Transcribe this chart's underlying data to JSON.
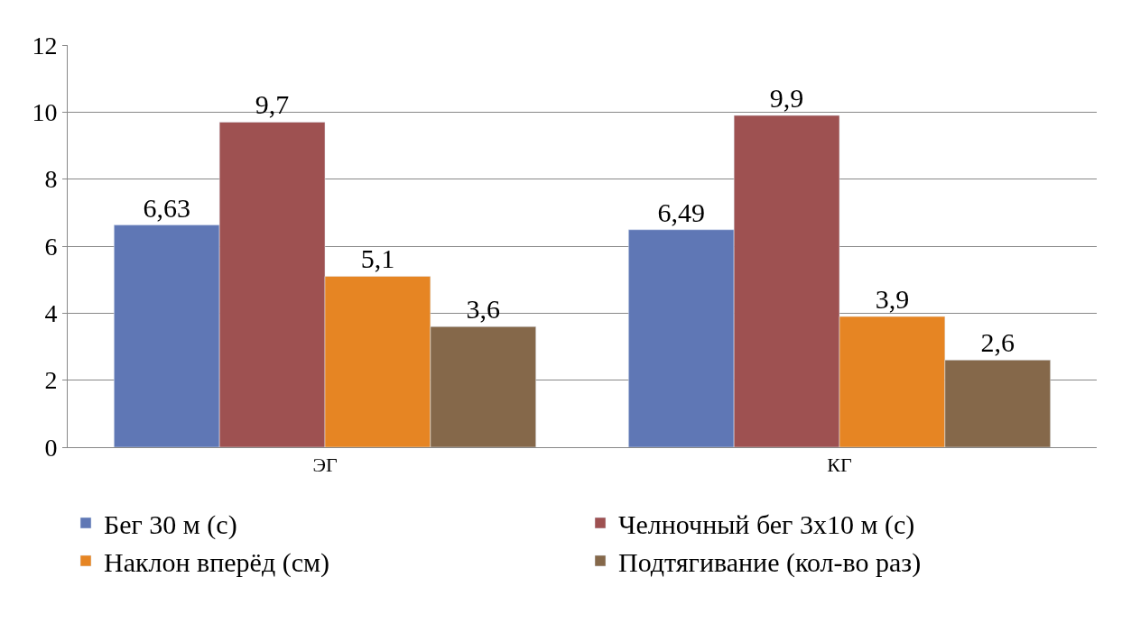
{
  "chart_data": {
    "type": "bar",
    "categories": [
      "ЭГ",
      "КГ"
    ],
    "series": [
      {
        "name": "Бег 30 м (с)",
        "color": "#5f77b5",
        "values": [
          6.63,
          6.49
        ],
        "value_labels": [
          "6,63",
          "6,49"
        ]
      },
      {
        "name": "Челночный бег 3х10 м (с)",
        "color": "#9e5151",
        "values": [
          9.7,
          9.9
        ],
        "value_labels": [
          "9,7",
          "9,9"
        ]
      },
      {
        "name": "Наклон вперёд (см)",
        "color": "#e68523",
        "values": [
          5.1,
          3.9
        ],
        "value_labels": [
          "5,1",
          "3,9"
        ]
      },
      {
        "name": "Подтягивание (кол-во раз)",
        "color": "#85684a",
        "values": [
          3.6,
          2.6
        ],
        "value_labels": [
          "3,6",
          "2,6"
        ]
      }
    ],
    "ylim": [
      0,
      12
    ],
    "yticks": [
      0,
      2,
      4,
      6,
      8,
      10,
      12
    ],
    "grid": "y",
    "legend": "bottom"
  }
}
